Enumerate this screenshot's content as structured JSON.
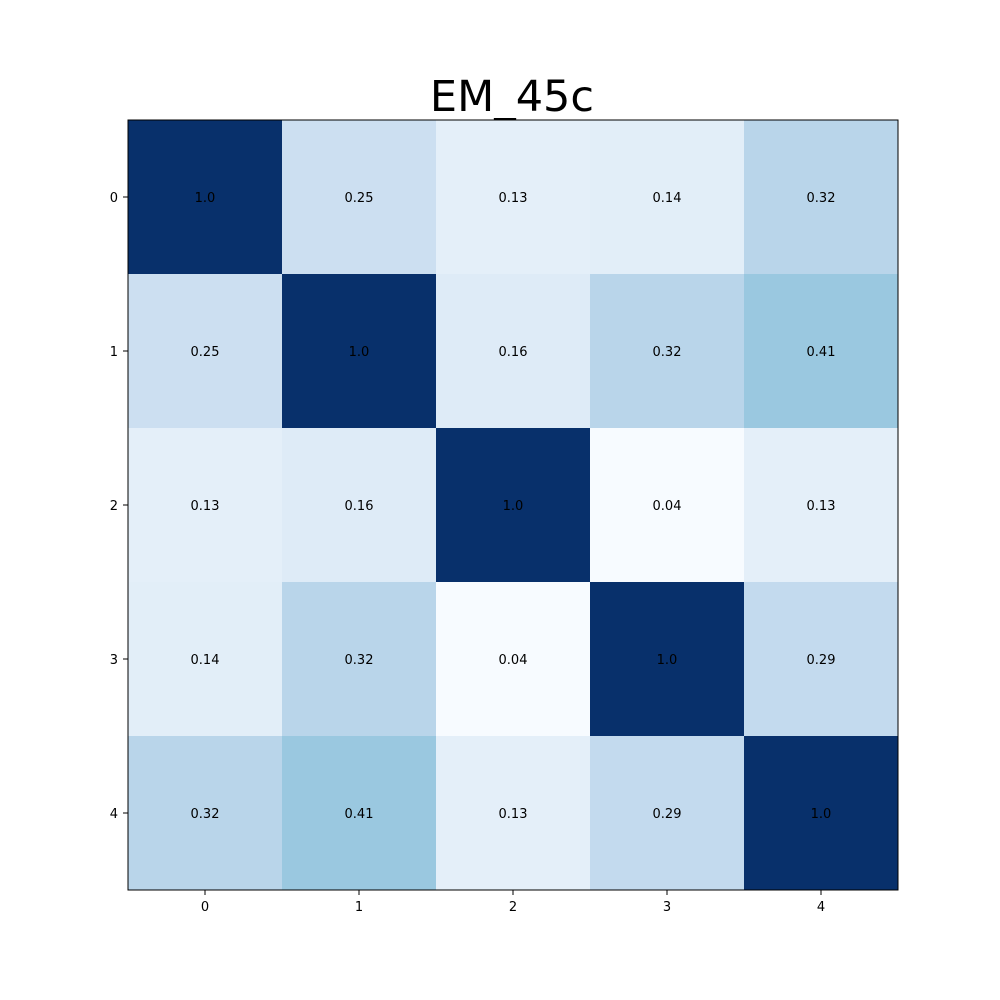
{
  "chart_data": {
    "type": "heatmap",
    "title": "EM_45c",
    "xlabel": "",
    "ylabel": "",
    "x_categories": [
      "0",
      "1",
      "2",
      "3",
      "4"
    ],
    "y_categories": [
      "0",
      "1",
      "2",
      "3",
      "4"
    ],
    "values": [
      [
        1.0,
        0.25,
        0.13,
        0.14,
        0.32
      ],
      [
        0.25,
        1.0,
        0.16,
        0.32,
        0.41
      ],
      [
        0.13,
        0.16,
        1.0,
        0.04,
        0.13
      ],
      [
        0.14,
        0.32,
        0.04,
        1.0,
        0.29
      ],
      [
        0.32,
        0.41,
        0.13,
        0.29,
        1.0
      ]
    ],
    "cell_labels": [
      [
        "1.0",
        "0.25",
        "0.13",
        "0.14",
        "0.32"
      ],
      [
        "0.25",
        "1.0",
        "0.16",
        "0.32",
        "0.41"
      ],
      [
        "0.13",
        "0.16",
        "1.0",
        "0.04",
        "0.13"
      ],
      [
        "0.14",
        "0.32",
        "0.04",
        "1.0",
        "0.29"
      ],
      [
        "0.32",
        "0.41",
        "0.13",
        "0.29",
        "1.0"
      ]
    ],
    "colormap": "Blues",
    "colormap_stops": [
      "#f7fbff",
      "#deebf7",
      "#c6dbef",
      "#9ecae1",
      "#6baed6",
      "#4292c6",
      "#2171b5",
      "#08519c",
      "#08306b"
    ],
    "vmin": 0.04,
    "vmax": 1.0,
    "grid": false,
    "legend": "none"
  }
}
